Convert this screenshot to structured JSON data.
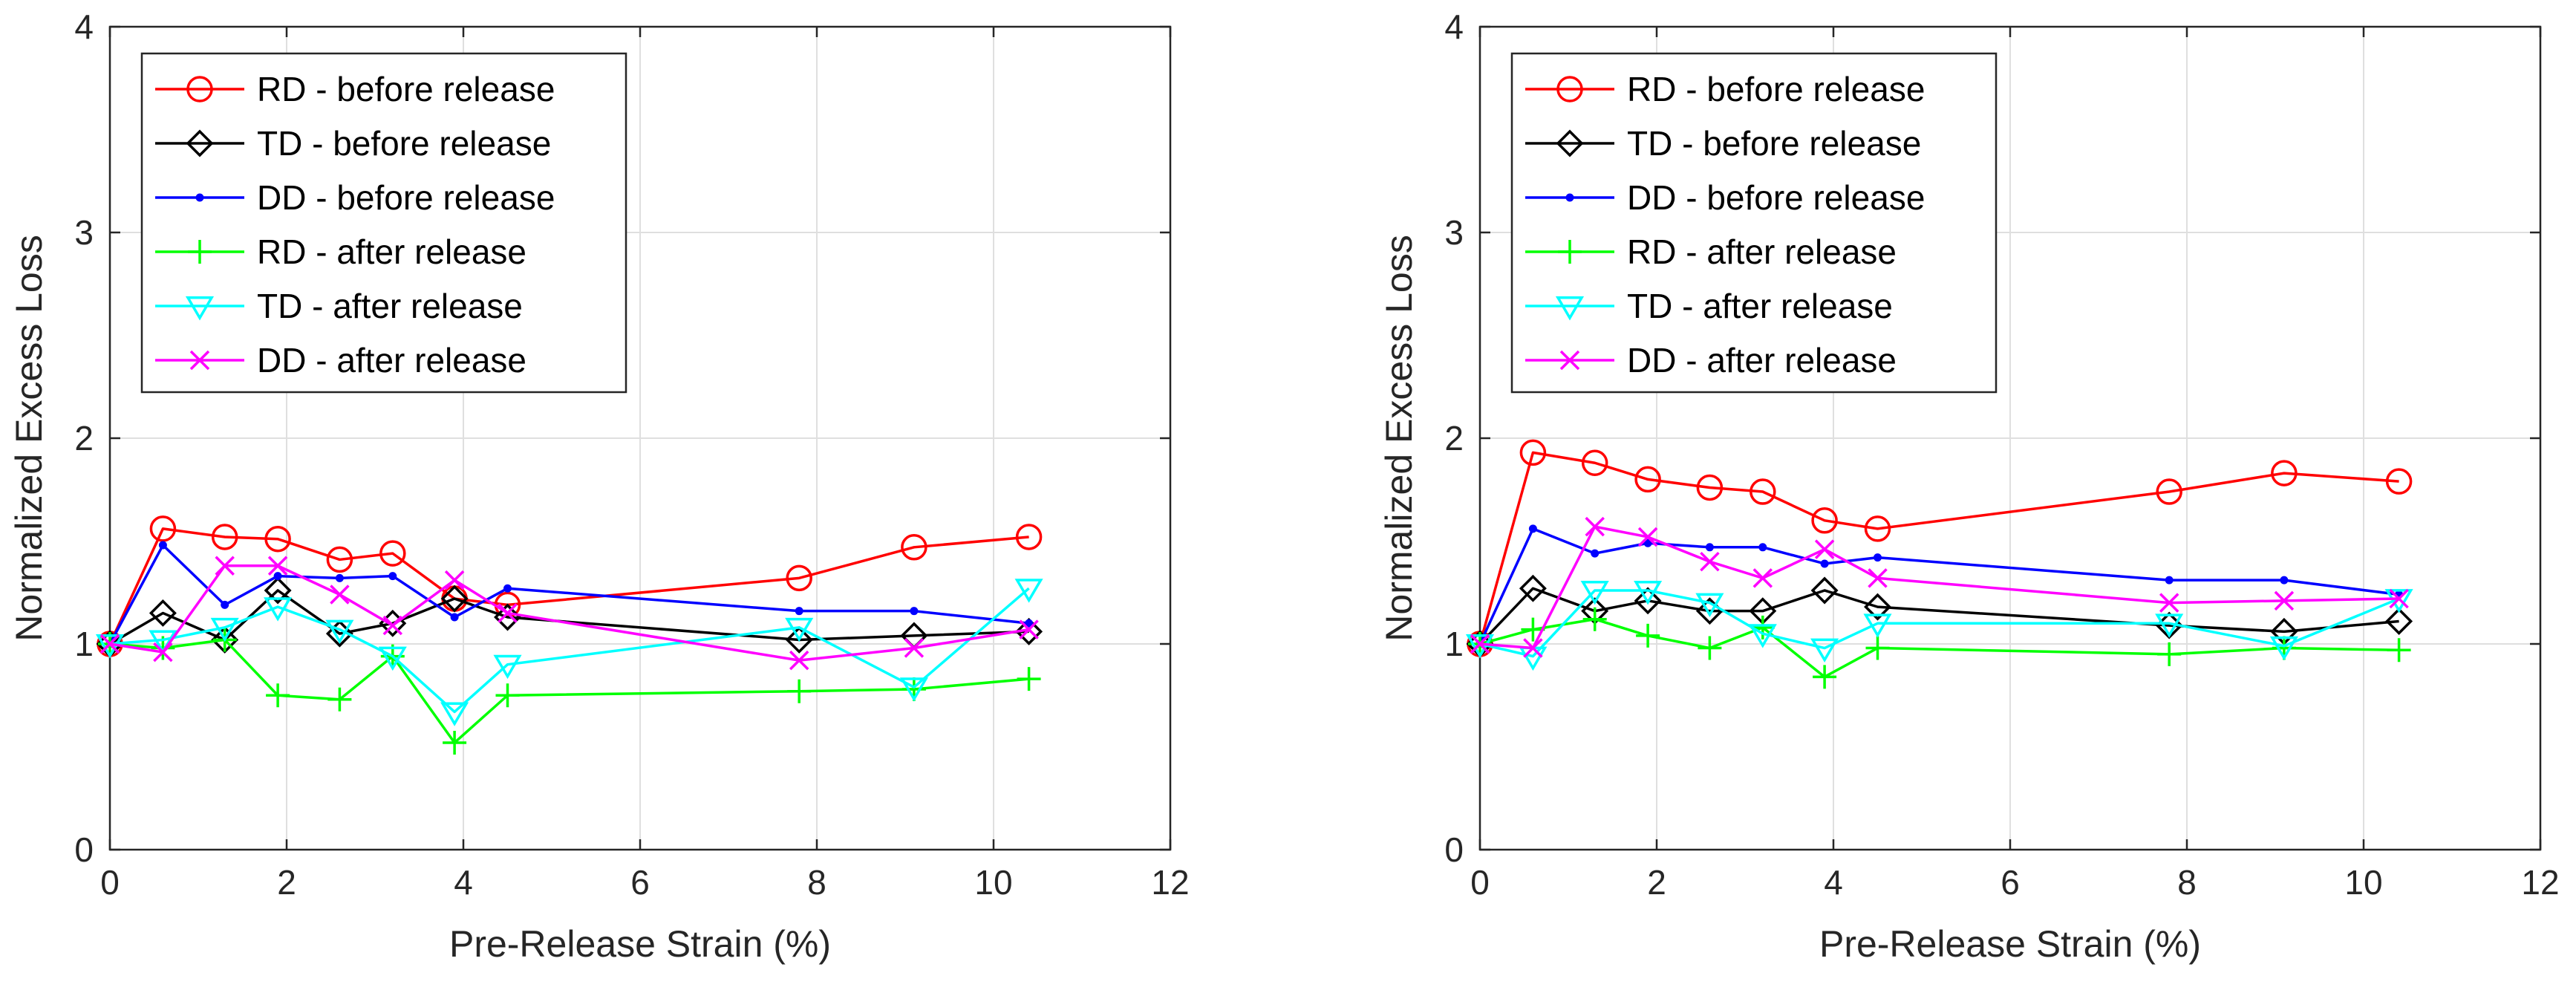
{
  "chart_data": [
    {
      "type": "line",
      "title": "",
      "xlabel": "Pre-Release Strain (%)",
      "ylabel": "Normalized Excess Loss",
      "xlim": [
        0,
        12
      ],
      "ylim": [
        0,
        4
      ],
      "xticks": [
        "0",
        "2",
        "4",
        "6",
        "8",
        "10",
        "12"
      ],
      "yticks": [
        "0",
        "1",
        "2",
        "3",
        "4"
      ],
      "grid": true,
      "legend_position": "top-left",
      "x": [
        0,
        0.6,
        1.3,
        1.9,
        2.6,
        3.2,
        3.9,
        4.5,
        7.8,
        9.1,
        10.4
      ],
      "series": [
        {
          "name": "RD - before release",
          "color": "#ff0000",
          "marker": "circle",
          "values": [
            1.0,
            1.56,
            1.52,
            1.51,
            1.41,
            1.44,
            1.22,
            1.19,
            1.32,
            1.47,
            1.52
          ]
        },
        {
          "name": "TD - before release",
          "color": "#000000",
          "marker": "diamond",
          "values": [
            1.0,
            1.15,
            1.02,
            1.26,
            1.05,
            1.1,
            1.22,
            1.13,
            1.02,
            1.04,
            1.06
          ]
        },
        {
          "name": "DD - before release",
          "color": "#0000ff",
          "marker": "dot",
          "values": [
            1.0,
            1.48,
            1.19,
            1.33,
            1.32,
            1.33,
            1.13,
            1.27,
            1.16,
            1.16,
            1.1
          ]
        },
        {
          "name": "RD - after release",
          "color": "#00ff00",
          "marker": "plus",
          "values": [
            1.0,
            0.98,
            1.02,
            0.75,
            0.73,
            0.94,
            0.52,
            0.75,
            0.77,
            0.78,
            0.83
          ]
        },
        {
          "name": "TD - after release",
          "color": "#00ffff",
          "marker": "triangle-down",
          "values": [
            1.0,
            1.02,
            1.08,
            1.18,
            1.07,
            0.94,
            0.67,
            0.9,
            1.08,
            0.79,
            1.27
          ]
        },
        {
          "name": "DD - after release",
          "color": "#ff00ff",
          "marker": "x",
          "values": [
            1.0,
            0.96,
            1.38,
            1.38,
            1.24,
            1.09,
            1.31,
            1.15,
            0.92,
            0.98,
            1.07
          ]
        }
      ]
    },
    {
      "type": "line",
      "title": "",
      "xlabel": "Pre-Release Strain (%)",
      "ylabel": "Normalized Excess Loss",
      "xlim": [
        0,
        12
      ],
      "ylim": [
        0,
        4
      ],
      "xticks": [
        "0",
        "2",
        "4",
        "6",
        "8",
        "10",
        "12"
      ],
      "yticks": [
        "0",
        "1",
        "2",
        "3",
        "4"
      ],
      "grid": true,
      "legend_position": "top-left",
      "x": [
        0,
        0.6,
        1.3,
        1.9,
        2.6,
        3.2,
        3.9,
        4.5,
        7.8,
        9.1,
        10.4
      ],
      "series": [
        {
          "name": "RD - before release",
          "color": "#ff0000",
          "marker": "circle",
          "values": [
            1.0,
            1.93,
            1.88,
            1.8,
            1.76,
            1.74,
            1.6,
            1.56,
            1.74,
            1.83,
            1.79
          ]
        },
        {
          "name": "TD - before release",
          "color": "#000000",
          "marker": "diamond",
          "values": [
            1.0,
            1.27,
            1.16,
            1.21,
            1.16,
            1.16,
            1.26,
            1.18,
            1.09,
            1.06,
            1.11
          ]
        },
        {
          "name": "DD - before release",
          "color": "#0000ff",
          "marker": "dot",
          "values": [
            1.0,
            1.56,
            1.44,
            1.49,
            1.47,
            1.47,
            1.39,
            1.42,
            1.31,
            1.31,
            1.24
          ]
        },
        {
          "name": "RD - after release",
          "color": "#00ff00",
          "marker": "plus",
          "values": [
            1.0,
            1.07,
            1.12,
            1.04,
            0.98,
            1.08,
            0.84,
            0.98,
            0.95,
            0.98,
            0.97
          ]
        },
        {
          "name": "TD - after release",
          "color": "#00ffff",
          "marker": "triangle-down",
          "values": [
            1.0,
            0.94,
            1.26,
            1.26,
            1.2,
            1.05,
            0.98,
            1.1,
            1.1,
            0.99,
            1.22
          ]
        },
        {
          "name": "DD - after release",
          "color": "#ff00ff",
          "marker": "x",
          "values": [
            1.0,
            0.98,
            1.57,
            1.52,
            1.4,
            1.32,
            1.46,
            1.32,
            1.2,
            1.21,
            1.22
          ]
        }
      ]
    }
  ]
}
